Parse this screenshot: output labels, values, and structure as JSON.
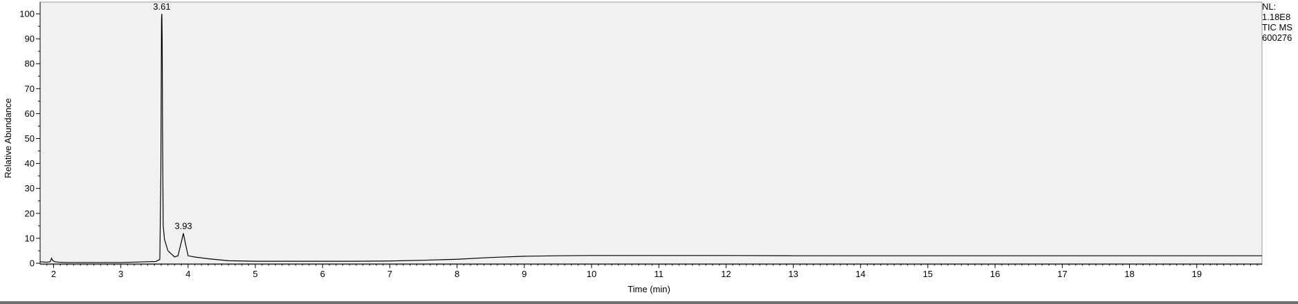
{
  "chart_data": {
    "type": "line",
    "xlabel": "Time (min)",
    "ylabel": "Relative Abundance",
    "xlim": [
      1.8,
      19.97
    ],
    "ylim": [
      0,
      100
    ],
    "x_ticks": [
      2,
      3,
      4,
      5,
      6,
      7,
      8,
      9,
      10,
      11,
      12,
      13,
      14,
      15,
      16,
      17,
      18,
      19
    ],
    "y_ticks": [
      0,
      10,
      20,
      30,
      40,
      50,
      60,
      70,
      80,
      90,
      100
    ],
    "grid": false,
    "series": [
      {
        "x": [
          1.8,
          1.9,
          1.95,
          1.97,
          1.99,
          2.02,
          2.08,
          2.2,
          2.5,
          3.0,
          3.4,
          3.52,
          3.58,
          3.595,
          3.605,
          3.61,
          3.615,
          3.62,
          3.63,
          3.65,
          3.7,
          3.8,
          3.85,
          3.9,
          3.93,
          3.96,
          4.0,
          4.1,
          4.3,
          4.6,
          5.0,
          5.5,
          6.0,
          6.5,
          7.0,
          7.5,
          8.0,
          8.5,
          9.0,
          9.5,
          10,
          11,
          12,
          13,
          14,
          15,
          16,
          17,
          18,
          19,
          19.97
        ],
        "y": [
          0.6,
          0.4,
          0.6,
          2.0,
          1.0,
          0.6,
          0.4,
          0.3,
          0.3,
          0.3,
          0.6,
          0.7,
          1.5,
          35,
          98,
          100,
          90,
          55,
          15,
          9.5,
          5.0,
          2.5,
          3.0,
          8.5,
          12,
          8.0,
          3.0,
          2.5,
          1.8,
          1.0,
          0.8,
          0.8,
          0.8,
          0.8,
          0.9,
          1.2,
          1.6,
          2.3,
          2.8,
          3.0,
          3.1,
          3.1,
          3.1,
          3.0,
          3.0,
          3.0,
          3.0,
          3.0,
          3.0,
          3.0,
          3.0
        ]
      }
    ],
    "peak_labels": [
      {
        "x": 3.61,
        "y": 100,
        "text": "3.61"
      },
      {
        "x": 3.93,
        "y": 12,
        "text": "3.93"
      }
    ],
    "info_lines": [
      "NL:",
      "1.18E8",
      "TIC  MS",
      "600276"
    ]
  },
  "colors": {
    "trace": "#000000",
    "plot_background": "#f1f1f1",
    "page_background": "#ffffff",
    "bottom_bar": "#6f6f6f"
  }
}
